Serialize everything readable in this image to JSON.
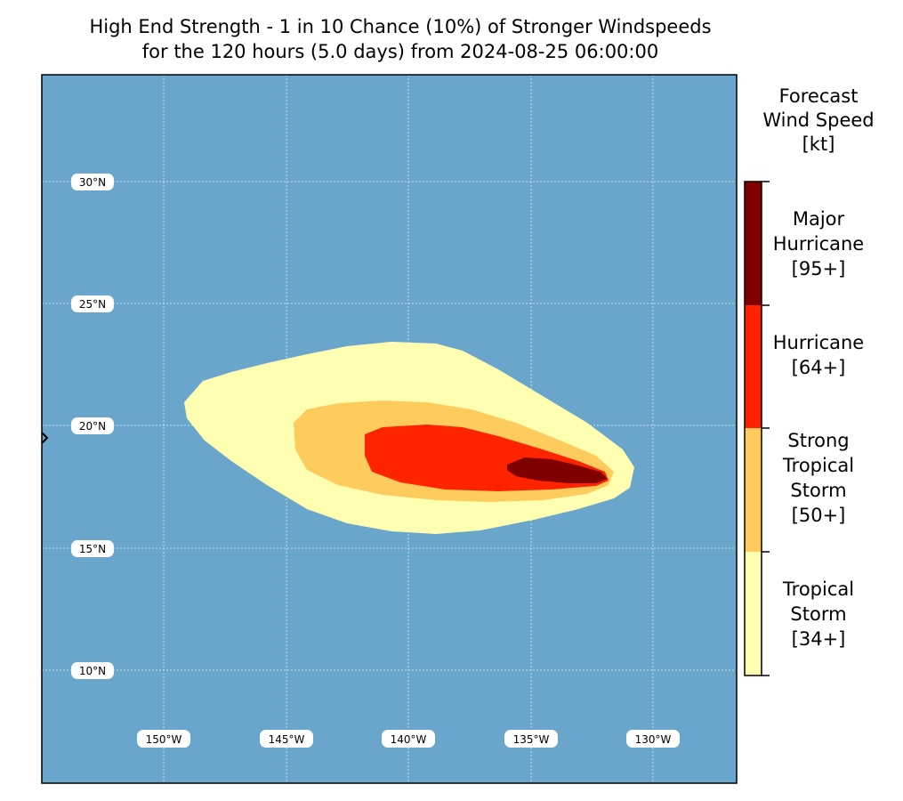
{
  "title": {
    "line1": "High End Strength - 1 in 10 Chance (10%) of Stronger Windspeeds",
    "line2": "for the 120 hours (5.0 days) from 2024-08-25 06:00:00"
  },
  "map": {
    "region": "Central North Pacific",
    "ocean_color": "#6aa6cc",
    "lat_range": [
      5.6,
      34.5
    ],
    "lon_range": [
      -155,
      -126.6
    ],
    "lat_labels": [
      "30°N",
      "25°N",
      "20°N",
      "15°N",
      "10°N"
    ],
    "lon_labels": [
      "150°W",
      "145°W",
      "140°W",
      "135°W",
      "130°W"
    ],
    "swath": {
      "tropical_storm_color": "#ffffb2",
      "strong_tropical_storm_color": "#fecc5c",
      "hurricane_color": "#ff2400",
      "major_hurricane_color": "#800000"
    }
  },
  "colorbar": {
    "title": [
      "Forecast",
      "Wind Speed",
      "[kt]"
    ],
    "bands": [
      {
        "lines": [
          "Major",
          "Hurricane",
          "[95+]"
        ],
        "color": "#800000"
      },
      {
        "lines": [
          "Hurricane",
          "[64+]"
        ],
        "color": "#ff2400"
      },
      {
        "lines": [
          "Strong",
          "Tropical",
          "Storm",
          "[50+]"
        ],
        "color": "#fecc5c"
      },
      {
        "lines": [
          "Tropical",
          "Storm",
          "[34+]"
        ],
        "color": "#ffffb2"
      }
    ]
  }
}
